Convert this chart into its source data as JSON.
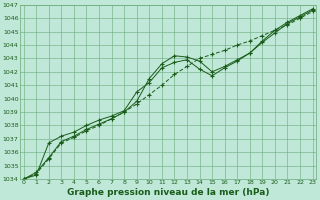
{
  "x": [
    0,
    1,
    2,
    3,
    4,
    5,
    6,
    7,
    8,
    9,
    10,
    11,
    12,
    13,
    14,
    15,
    16,
    17,
    18,
    19,
    20,
    21,
    22,
    23
  ],
  "line1": [
    1034.0,
    1034.5,
    1035.6,
    1036.8,
    1037.2,
    1037.7,
    1038.1,
    1038.5,
    1039.0,
    1039.8,
    1041.5,
    1042.6,
    1043.2,
    1043.1,
    1042.8,
    1042.0,
    1042.4,
    1042.9,
    1043.4,
    1044.2,
    1044.9,
    1045.6,
    1046.1,
    1046.6
  ],
  "line2": [
    1034.0,
    1034.4,
    1035.5,
    1036.7,
    1037.1,
    1037.6,
    1038.0,
    1038.5,
    1039.0,
    1039.6,
    1040.3,
    1041.0,
    1041.8,
    1042.4,
    1043.0,
    1043.3,
    1043.6,
    1044.0,
    1044.3,
    1044.7,
    1045.1,
    1045.5,
    1046.0,
    1046.5
  ],
  "line3": [
    1034.0,
    1034.3,
    1036.7,
    1037.2,
    1037.5,
    1038.0,
    1038.4,
    1038.7,
    1039.1,
    1040.5,
    1041.2,
    1042.3,
    1042.7,
    1042.9,
    1042.2,
    1041.7,
    1042.3,
    1042.8,
    1043.4,
    1044.3,
    1045.1,
    1045.7,
    1046.2,
    1046.7
  ],
  "line_color": "#1a5c1a",
  "bg_color": "#c0e8d8",
  "grid_color": "#6aaa7a",
  "ylim": [
    1034,
    1047
  ],
  "yticks": [
    1034,
    1035,
    1036,
    1037,
    1038,
    1039,
    1040,
    1041,
    1042,
    1043,
    1044,
    1045,
    1046,
    1047
  ],
  "xlabel": "Graphe pression niveau de la mer (hPa)",
  "xlabel_fontsize": 6.5,
  "figsize": [
    3.2,
    2.0
  ],
  "dpi": 100
}
